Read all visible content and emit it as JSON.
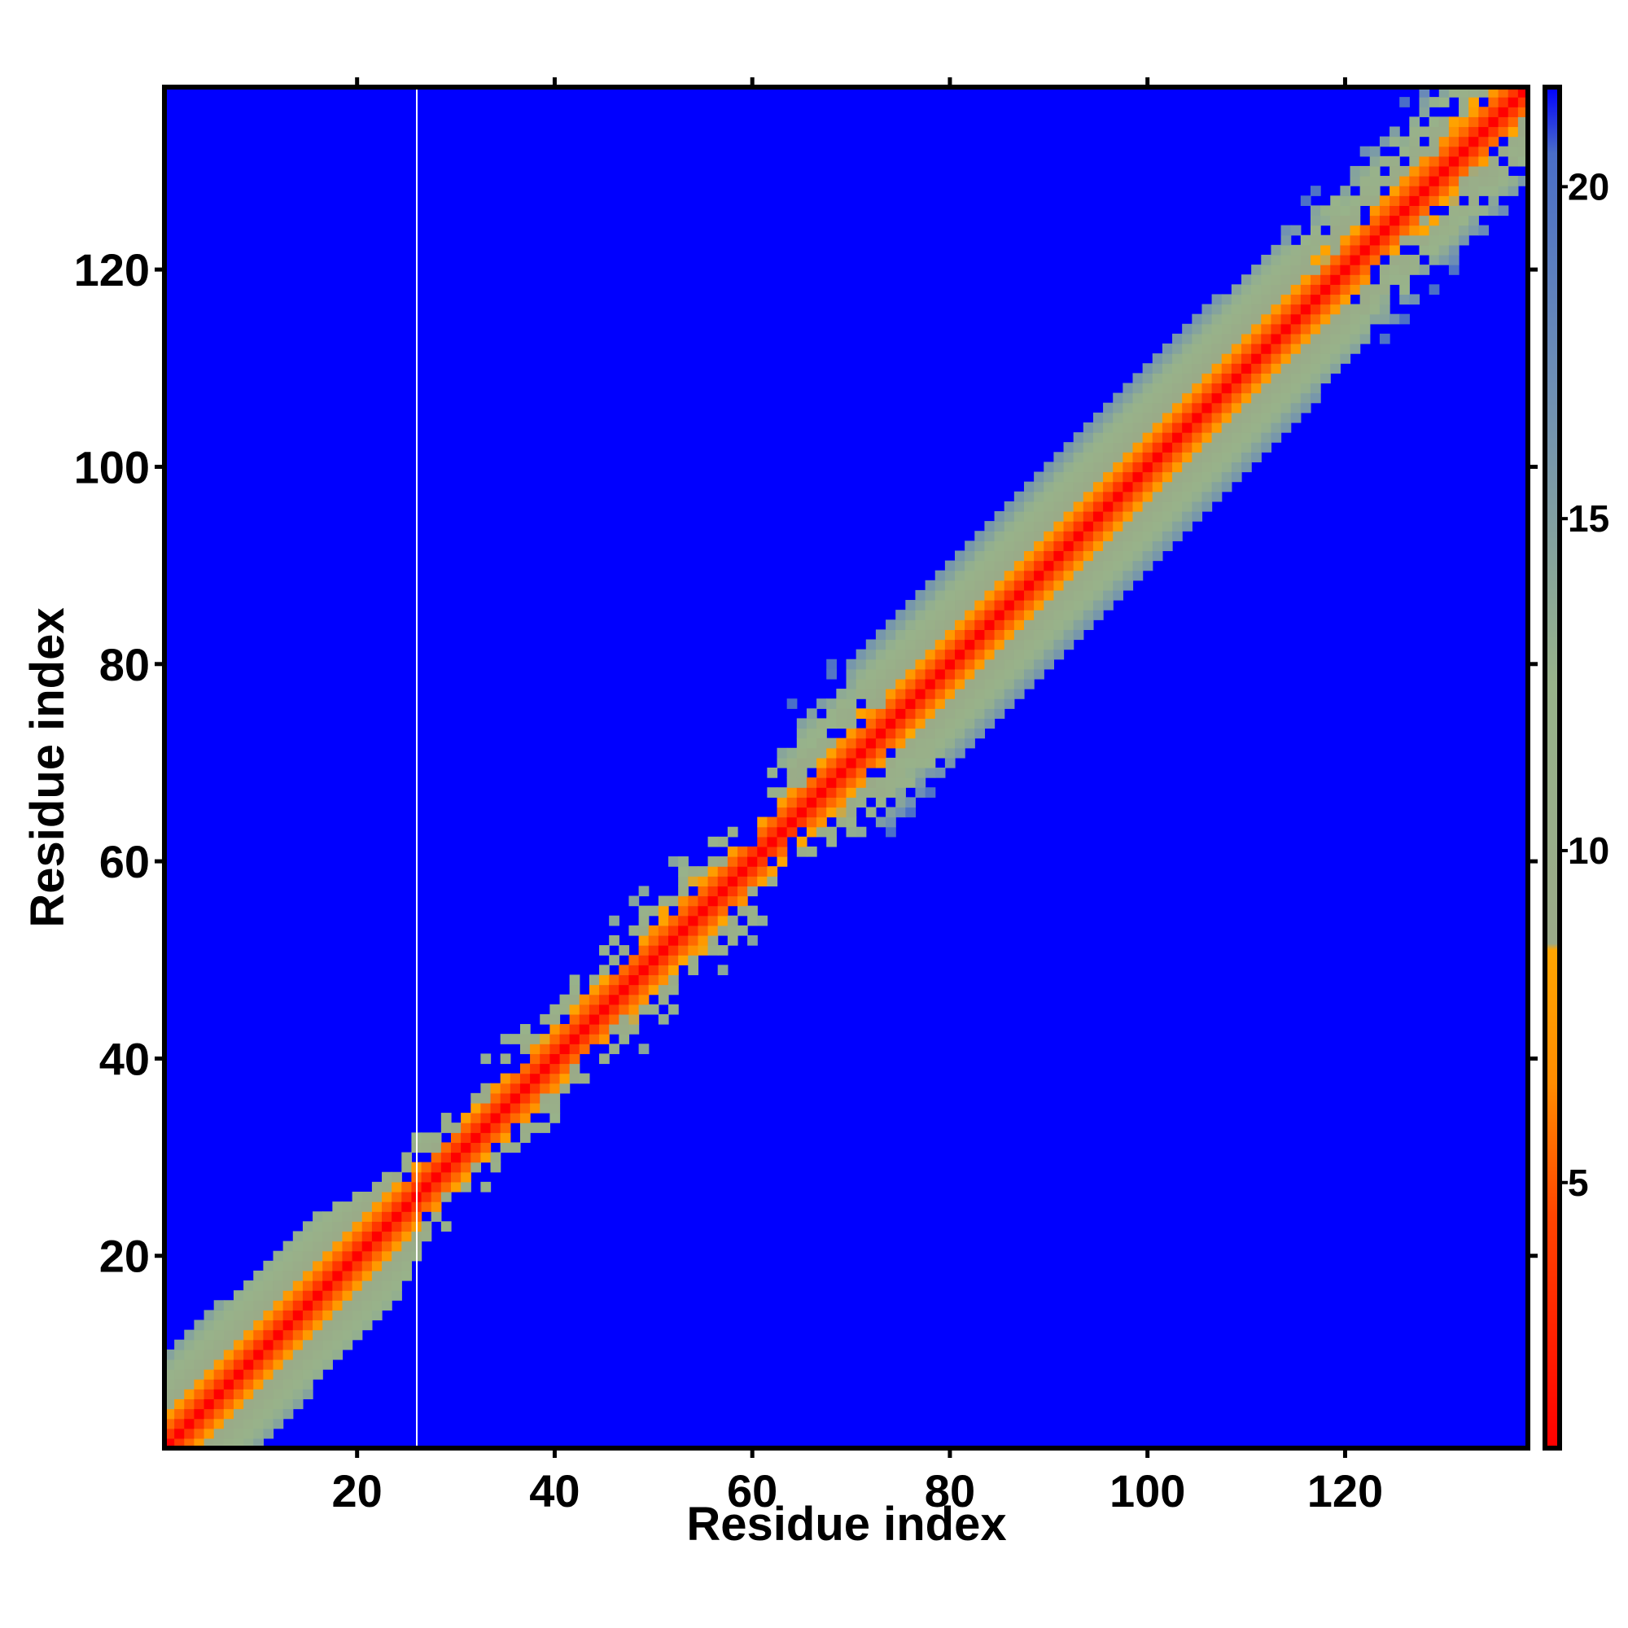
{
  "chart_data": {
    "type": "heatmap",
    "title": "",
    "xlabel": "Residue index",
    "ylabel": "Residue index",
    "n_residues": 138,
    "xlim": [
      1,
      138
    ],
    "ylim": [
      1,
      138
    ],
    "x_ticks": [
      20,
      40,
      60,
      80,
      100,
      120
    ],
    "y_ticks": [
      20,
      40,
      60,
      80,
      100,
      120
    ],
    "colorbar": {
      "ticks": [
        5,
        10,
        15,
        20
      ],
      "range": [
        1,
        21.5
      ],
      "stops": [
        {
          "value": 1,
          "color": "#ff0000"
        },
        {
          "value": 4.5,
          "color": "#ff4500"
        },
        {
          "value": 6.5,
          "color": "#ff8c00"
        },
        {
          "value": 8.5,
          "color": "#ffa500"
        },
        {
          "value": 8.6,
          "color": "#9aaa88"
        },
        {
          "value": 12.5,
          "color": "#98b38a"
        },
        {
          "value": 17,
          "color": "#6e8fb5"
        },
        {
          "value": 20.5,
          "color": "#4a6ec8"
        },
        {
          "value": 21.5,
          "color": "#0000ff"
        }
      ]
    },
    "background_color": "#0000ff",
    "diagonal_band": {
      "description_values": "approximate distance per residue offset |i-j|",
      "offset_values": [
        {
          "offset": 0,
          "value": 1
        },
        {
          "offset": 1,
          "value": 3.8
        },
        {
          "offset": 2,
          "value": 5.5
        },
        {
          "offset": 3,
          "value": 7.5
        },
        {
          "offset": 4,
          "value": 9
        },
        {
          "offset": 6,
          "value": 11
        },
        {
          "offset": 8,
          "value": 13
        },
        {
          "offset": 10,
          "value": 16
        },
        {
          "offset": 11,
          "value": 19
        }
      ],
      "band_halfwidth_by_residue": [
        {
          "residue": 1,
          "halfwidth": 10
        },
        {
          "residue": 20,
          "halfwidth": 8
        },
        {
          "residue": 26,
          "halfwidth": 4
        },
        {
          "residue": 40,
          "halfwidth": 5
        },
        {
          "residue": 55,
          "halfwidth": 6
        },
        {
          "residue": 63,
          "halfwidth": 3
        },
        {
          "residue": 70,
          "halfwidth": 10
        },
        {
          "residue": 100,
          "halfwidth": 11
        },
        {
          "residue": 125,
          "halfwidth": 9
        },
        {
          "residue": 138,
          "halfwidth": 8
        }
      ],
      "blank_column_residue": 26
    }
  }
}
